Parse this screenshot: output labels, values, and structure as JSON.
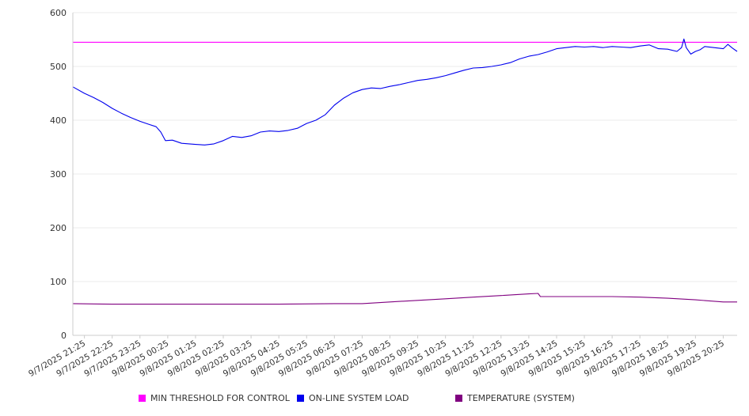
{
  "chart_data": {
    "type": "line",
    "title": "",
    "xlabel": "",
    "ylabel": "",
    "ylim": [
      0,
      600
    ],
    "yticks": [
      0,
      100,
      200,
      300,
      400,
      500,
      600
    ],
    "grid": "horizontal",
    "legend_position": "bottom",
    "x_range": [
      "9/7/2025 21:00",
      "9/8/2025 20:55"
    ],
    "x_tick_labels": [
      "9/7/2025 21:25",
      "9/7/2025 22:25",
      "9/7/2025 23:25",
      "9/8/2025 00:25",
      "9/8/2025 01:25",
      "9/8/2025 02:25",
      "9/8/2025 03:25",
      "9/8/2025 04:25",
      "9/8/2025 05:25",
      "9/8/2025 06:25",
      "9/8/2025 07:25",
      "9/8/2025 08:25",
      "9/8/2025 09:25",
      "9/8/2025 10:25",
      "9/8/2025 11:25",
      "9/8/2025 12:25",
      "9/8/2025 13:25",
      "9/8/2025 14:25",
      "9/8/2025 15:25",
      "9/8/2025 16:25",
      "9/8/2025 17:25",
      "9/8/2025 18:25",
      "9/8/2025 19:25",
      "9/8/2025 20:25"
    ],
    "series": [
      {
        "name": "MIN THRESHOLD FOR CONTROL",
        "color": "#ff00ff",
        "points": [
          [
            "9/7/2025 21:00",
            545
          ],
          [
            "9/8/2025 20:55",
            545
          ]
        ]
      },
      {
        "name": "ON-LINE SYSTEM LOAD",
        "color": "#0000ee",
        "points": [
          [
            "9/7/2025 21:00",
            462
          ],
          [
            "9/7/2025 21:25",
            450
          ],
          [
            "9/7/2025 21:45",
            442
          ],
          [
            "9/7/2025 22:05",
            433
          ],
          [
            "9/7/2025 22:25",
            422
          ],
          [
            "9/7/2025 22:45",
            413
          ],
          [
            "9/7/2025 23:05",
            405
          ],
          [
            "9/7/2025 23:25",
            398
          ],
          [
            "9/7/2025 23:45",
            392
          ],
          [
            "9/8/2025 00:00",
            388
          ],
          [
            "9/8/2025 00:10",
            378
          ],
          [
            "9/8/2025 00:20",
            362
          ],
          [
            "9/8/2025 00:35",
            363
          ],
          [
            "9/8/2025 00:55",
            357
          ],
          [
            "9/8/2025 01:25",
            355
          ],
          [
            "9/8/2025 01:45",
            354
          ],
          [
            "9/8/2025 02:05",
            356
          ],
          [
            "9/8/2025 02:25",
            362
          ],
          [
            "9/8/2025 02:45",
            370
          ],
          [
            "9/8/2025 03:05",
            368
          ],
          [
            "9/8/2025 03:25",
            371
          ],
          [
            "9/8/2025 03:45",
            378
          ],
          [
            "9/8/2025 04:05",
            380
          ],
          [
            "9/8/2025 04:25",
            379
          ],
          [
            "9/8/2025 04:45",
            381
          ],
          [
            "9/8/2025 05:05",
            385
          ],
          [
            "9/8/2025 05:25",
            394
          ],
          [
            "9/8/2025 05:45",
            400
          ],
          [
            "9/8/2025 06:05",
            410
          ],
          [
            "9/8/2025 06:25",
            428
          ],
          [
            "9/8/2025 06:45",
            441
          ],
          [
            "9/8/2025 07:05",
            451
          ],
          [
            "9/8/2025 07:25",
            457
          ],
          [
            "9/8/2025 07:45",
            460
          ],
          [
            "9/8/2025 08:05",
            459
          ],
          [
            "9/8/2025 08:25",
            463
          ],
          [
            "9/8/2025 08:45",
            466
          ],
          [
            "9/8/2025 09:05",
            470
          ],
          [
            "9/8/2025 09:25",
            474
          ],
          [
            "9/8/2025 09:45",
            476
          ],
          [
            "9/8/2025 10:05",
            479
          ],
          [
            "9/8/2025 10:25",
            483
          ],
          [
            "9/8/2025 10:45",
            488
          ],
          [
            "9/8/2025 11:05",
            493
          ],
          [
            "9/8/2025 11:25",
            497
          ],
          [
            "9/8/2025 11:45",
            498
          ],
          [
            "9/8/2025 12:05",
            500
          ],
          [
            "9/8/2025 12:25",
            503
          ],
          [
            "9/8/2025 12:45",
            507
          ],
          [
            "9/8/2025 13:05",
            514
          ],
          [
            "9/8/2025 13:25",
            519
          ],
          [
            "9/8/2025 13:45",
            522
          ],
          [
            "9/8/2025 14:05",
            527
          ],
          [
            "9/8/2025 14:25",
            533
          ],
          [
            "9/8/2025 14:45",
            535
          ],
          [
            "9/8/2025 15:05",
            537
          ],
          [
            "9/8/2025 15:25",
            536
          ],
          [
            "9/8/2025 15:45",
            537
          ],
          [
            "9/8/2025 16:05",
            535
          ],
          [
            "9/8/2025 16:25",
            537
          ],
          [
            "9/8/2025 16:45",
            536
          ],
          [
            "9/8/2025 17:05",
            535
          ],
          [
            "9/8/2025 17:25",
            538
          ],
          [
            "9/8/2025 17:45",
            540
          ],
          [
            "9/8/2025 18:05",
            533
          ],
          [
            "9/8/2025 18:25",
            532
          ],
          [
            "9/8/2025 18:45",
            528
          ],
          [
            "9/8/2025 18:55",
            535
          ],
          [
            "9/8/2025 19:00",
            551
          ],
          [
            "9/8/2025 19:05",
            535
          ],
          [
            "9/8/2025 19:15",
            523
          ],
          [
            "9/8/2025 19:25",
            528
          ],
          [
            "9/8/2025 19:35",
            531
          ],
          [
            "9/8/2025 19:45",
            537
          ],
          [
            "9/8/2025 20:05",
            535
          ],
          [
            "9/8/2025 20:25",
            533
          ],
          [
            "9/8/2025 20:35",
            541
          ],
          [
            "9/8/2025 20:45",
            534
          ],
          [
            "9/8/2025 20:55",
            528
          ]
        ]
      },
      {
        "name": "TEMPERATURE (SYSTEM)",
        "color": "#800080",
        "points": [
          [
            "9/7/2025 21:00",
            59
          ],
          [
            "9/7/2025 22:25",
            58
          ],
          [
            "9/8/2025 02:25",
            58
          ],
          [
            "9/8/2025 04:25",
            58
          ],
          [
            "9/8/2025 06:25",
            59
          ],
          [
            "9/8/2025 07:25",
            59
          ],
          [
            "9/8/2025 08:25",
            62
          ],
          [
            "9/8/2025 09:25",
            65
          ],
          [
            "9/8/2025 10:25",
            68
          ],
          [
            "9/8/2025 11:25",
            71
          ],
          [
            "9/8/2025 12:25",
            74
          ],
          [
            "9/8/2025 13:25",
            77
          ],
          [
            "9/8/2025 13:45",
            78
          ],
          [
            "9/8/2025 13:50",
            72
          ],
          [
            "9/8/2025 14:25",
            72
          ],
          [
            "9/8/2025 15:25",
            72
          ],
          [
            "9/8/2025 16:25",
            72
          ],
          [
            "9/8/2025 17:25",
            71
          ],
          [
            "9/8/2025 18:25",
            69
          ],
          [
            "9/8/2025 19:25",
            66
          ],
          [
            "9/8/2025 20:25",
            62
          ],
          [
            "9/8/2025 20:55",
            62
          ]
        ]
      }
    ]
  }
}
